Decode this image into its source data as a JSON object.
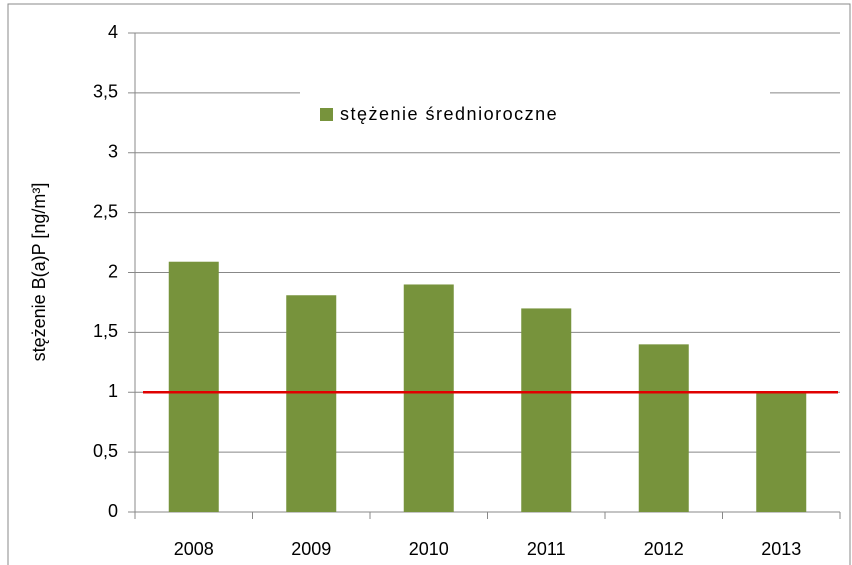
{
  "chart_data": {
    "type": "bar",
    "y_axis_label": "stężenie B(a)P  [ng/m³]",
    "categories": [
      "2008",
      "2009",
      "2010",
      "2011",
      "2012",
      "2013"
    ],
    "series": [
      {
        "name": "stężenie średnioroczne",
        "color": "#77933c",
        "values": [
          2.09,
          1.81,
          1.9,
          1.7,
          1.4,
          1.0
        ]
      }
    ],
    "reference_line": {
      "value": 1,
      "color": "#e00000"
    },
    "ylim": [
      0,
      4
    ],
    "yticks": [
      0,
      {
        "value": 0.5,
        "label": "0,5"
      },
      1,
      {
        "value": 1.5,
        "label": "1,5"
      },
      2,
      {
        "value": 2.5,
        "label": "2,5"
      },
      3,
      {
        "value": 3.5,
        "label": "3,5"
      },
      4
    ],
    "grid": true
  }
}
